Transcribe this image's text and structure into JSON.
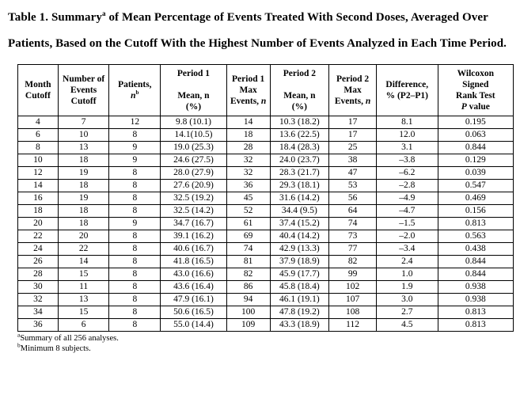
{
  "title": {
    "prefix": "Table 1. Summary",
    "superscript": "a",
    "suffix": " of Mean Percentage of Events Treated With Second Doses, Averaged Over Patients, Based on the Cutoff With the Highest Number of Events Analyzed in Each Time Period."
  },
  "table": {
    "headers": [
      {
        "id": "month-cutoff",
        "segments": [
          {
            "t": "Month Cutoff"
          }
        ]
      },
      {
        "id": "events-cutoff",
        "segments": [
          {
            "t": "Number of Events Cutoff"
          }
        ]
      },
      {
        "id": "patients-n",
        "segments": [
          {
            "t": "Patients,"
          },
          {
            "br": true
          },
          {
            "t": "n",
            "i": true
          },
          {
            "t": "b",
            "sup": true
          }
        ]
      },
      {
        "id": "period1-mean",
        "segments": [
          {
            "t": "Period 1"
          },
          {
            "br": true
          },
          {
            "br": true
          },
          {
            "t": "Mean, n"
          },
          {
            "br": true
          },
          {
            "t": "(%)"
          }
        ]
      },
      {
        "id": "period1-max-events",
        "segments": [
          {
            "t": "Period 1"
          },
          {
            "br": true
          },
          {
            "t": "Max"
          },
          {
            "br": true
          },
          {
            "t": "Events, "
          },
          {
            "t": "n",
            "i": true
          }
        ]
      },
      {
        "id": "period2-mean",
        "segments": [
          {
            "t": "Period 2"
          },
          {
            "br": true
          },
          {
            "br": true
          },
          {
            "t": "Mean, n"
          },
          {
            "br": true
          },
          {
            "t": "(%)"
          }
        ]
      },
      {
        "id": "period2-max-events",
        "segments": [
          {
            "t": "Period 2"
          },
          {
            "br": true
          },
          {
            "t": "Max"
          },
          {
            "br": true
          },
          {
            "t": "Events, "
          },
          {
            "t": "n",
            "i": true
          }
        ]
      },
      {
        "id": "difference",
        "segments": [
          {
            "t": "Difference,"
          },
          {
            "br": true
          },
          {
            "t": "% (P2–P1)"
          }
        ]
      },
      {
        "id": "wilcoxon-p",
        "segments": [
          {
            "t": "Wilcoxon"
          },
          {
            "br": true
          },
          {
            "t": "Signed"
          },
          {
            "br": true
          },
          {
            "t": "Rank Test"
          },
          {
            "br": true
          },
          {
            "t": "P",
            "i": true
          },
          {
            "t": " value"
          }
        ]
      }
    ],
    "rows": [
      [
        "4",
        "7",
        "12",
        "9.8 (10.1)",
        "14",
        "10.3 (18.2)",
        "17",
        "8.1",
        "0.195"
      ],
      [
        "6",
        "10",
        "8",
        "14.1(10.5)",
        "18",
        "13.6 (22.5)",
        "17",
        "12.0",
        "0.063"
      ],
      [
        "8",
        "13",
        "9",
        "19.0 (25.3)",
        "28",
        "18.4 (28.3)",
        "25",
        "3.1",
        "0.844"
      ],
      [
        "10",
        "18",
        "9",
        "24.6 (27.5)",
        "32",
        "24.0 (23.7)",
        "38",
        "–3.8",
        "0.129"
      ],
      [
        "12",
        "19",
        "8",
        "28.0 (27.9)",
        "32",
        "28.3 (21.7)",
        "47",
        "–6.2",
        "0.039"
      ],
      [
        "14",
        "18",
        "8",
        "27.6 (20.9)",
        "36",
        "29.3 (18.1)",
        "53",
        "–2.8",
        "0.547"
      ],
      [
        "16",
        "19",
        "8",
        "32.5 (19.2)",
        "45",
        "31.6 (14.2)",
        "56",
        "–4.9",
        "0.469"
      ],
      [
        "18",
        "18",
        "8",
        "32.5 (14.2)",
        "52",
        "34.4 (9.5)",
        "64",
        "–4.7",
        "0.156"
      ],
      [
        "20",
        "18",
        "9",
        "34.7 (16.7)",
        "61",
        "37.4 (15.2)",
        "74",
        "–1.5",
        "0.813"
      ],
      [
        "22",
        "20",
        "8",
        "39.1 (16.2)",
        "69",
        "40.4 (14.2)",
        "73",
        "–2.0",
        "0.563"
      ],
      [
        "24",
        "22",
        "8",
        "40.6 (16.7)",
        "74",
        "42.9 (13.3)",
        "77",
        "–3.4",
        "0.438"
      ],
      [
        "26",
        "14",
        "8",
        "41.8 (16.5)",
        "81",
        "37.9 (18.9)",
        "82",
        "2.4",
        "0.844"
      ],
      [
        "28",
        "15",
        "8",
        "43.0 (16.6)",
        "82",
        "45.9 (17.7)",
        "99",
        "1.0",
        "0.844"
      ],
      [
        "30",
        "11",
        "8",
        "43.6 (16.4)",
        "86",
        "45.8 (18.4)",
        "102",
        "1.9",
        "0.938"
      ],
      [
        "32",
        "13",
        "8",
        "47.9 (16.1)",
        "94",
        "46.1 (19.1)",
        "107",
        "3.0",
        "0.938"
      ],
      [
        "34",
        "15",
        "8",
        "50.6 (16.5)",
        "100",
        "47.8 (19.2)",
        "108",
        "2.7",
        "0.813"
      ],
      [
        "36",
        "6",
        "8",
        "55.0 (14.4)",
        "109",
        "43.3 (18.9)",
        "112",
        "4.5",
        "0.813"
      ]
    ]
  },
  "footnotes": [
    {
      "sup": "a",
      "text": "Summary of all 256 analyses."
    },
    {
      "sup": "b",
      "text": "Minimum 8 subjects."
    }
  ]
}
